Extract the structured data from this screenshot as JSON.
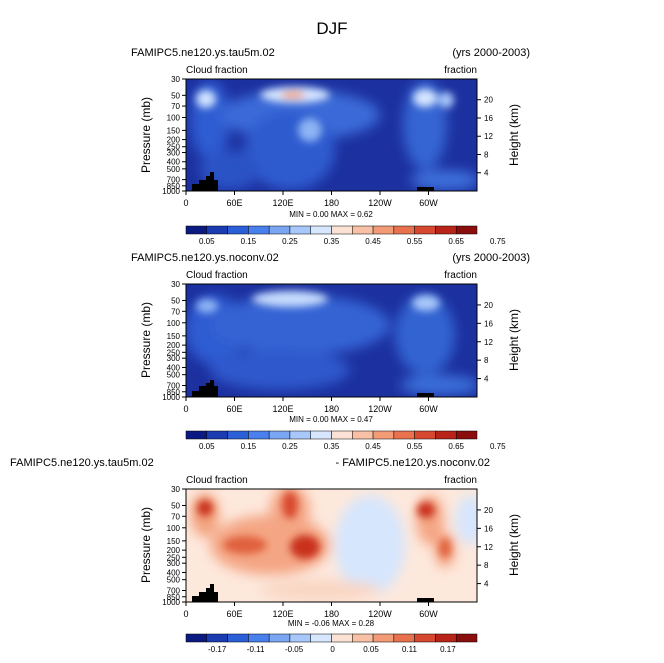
{
  "figure_title": "DJF",
  "colors": {
    "ocean_low": "#1b2fa0",
    "cloud_mid": "#5b8ee6",
    "cloud_high": "#cfe3ff",
    "peak": "#f0a27a",
    "terrain": "#000000"
  },
  "chart_data": [
    {
      "type": "heatmap",
      "left_title": "FAMIPC5.ne120.ys.tau5m.02",
      "right_title": "(yrs 2000-2003)",
      "left_subtitle": "Cloud fraction",
      "right_subtitle": "fraction",
      "ylabel": "Pressure (mb)",
      "ylabel_right": "Height (km)",
      "x_ticks": [
        "0",
        "60E",
        "120E",
        "180",
        "120W",
        "60W"
      ],
      "y_ticks": [
        "30",
        "50",
        "70",
        "100",
        "150",
        "200",
        "250",
        "300",
        "400",
        "500",
        "700",
        "850",
        "1000"
      ],
      "y_ticks_right": [
        "20",
        "16",
        "12",
        "8",
        "4"
      ],
      "stats": "MIN =  0.00   MAX =  0.62",
      "colorbar_labels": [
        "0.05",
        "0.15",
        "0.25",
        "0.35",
        "0.45",
        "0.55",
        "0.65",
        "0.75"
      ],
      "colorbar_colors": [
        "#0a1a80",
        "#1a3cb0",
        "#2a5fd8",
        "#4a80ee",
        "#7aa6f4",
        "#a9c8fa",
        "#d6e6fd",
        "#fbe2d4",
        "#f8c0a4",
        "#f39a76",
        "#e8714e",
        "#d6482f",
        "#b8241a",
        "#8a0e0c"
      ]
    },
    {
      "type": "heatmap",
      "left_title": "FAMIPC5.ne120.ys.noconv.02",
      "right_title": "(yrs 2000-2003)",
      "left_subtitle": "Cloud fraction",
      "right_subtitle": "fraction",
      "ylabel": "Pressure (mb)",
      "ylabel_right": "Height (km)",
      "x_ticks": [
        "0",
        "60E",
        "120E",
        "180",
        "120W",
        "60W"
      ],
      "y_ticks": [
        "30",
        "50",
        "70",
        "100",
        "150",
        "200",
        "250",
        "300",
        "400",
        "500",
        "700",
        "850",
        "1000"
      ],
      "y_ticks_right": [
        "20",
        "16",
        "12",
        "8",
        "4"
      ],
      "stats": "MIN =  0.00   MAX =  0.47",
      "colorbar_labels": [
        "0.05",
        "0.15",
        "0.25",
        "0.35",
        "0.45",
        "0.55",
        "0.65",
        "0.75"
      ],
      "colorbar_colors": [
        "#0a1a80",
        "#1a3cb0",
        "#2a5fd8",
        "#4a80ee",
        "#7aa6f4",
        "#a9c8fa",
        "#d6e6fd",
        "#fbe2d4",
        "#f8c0a4",
        "#f39a76",
        "#e8714e",
        "#d6482f",
        "#b8241a",
        "#8a0e0c"
      ]
    },
    {
      "type": "heatmap",
      "left_title": "FAMIPC5.ne120.ys.tau5m.02",
      "right_title": "- FAMIPC5.ne120.ys.noconv.02",
      "left_subtitle": "Cloud fraction",
      "right_subtitle": "fraction",
      "ylabel": "Pressure (mb)",
      "ylabel_right": "Height (km)",
      "x_ticks": [
        "0",
        "60E",
        "120E",
        "180",
        "120W",
        "60W"
      ],
      "y_ticks": [
        "30",
        "50",
        "70",
        "100",
        "150",
        "200",
        "250",
        "300",
        "400",
        "500",
        "700",
        "850",
        "1000"
      ],
      "y_ticks_right": [
        "20",
        "16",
        "12",
        "8",
        "4"
      ],
      "stats": "MIN = -0.06   MAX =  0.28",
      "colorbar_labels": [
        "-0.17",
        "-0.11",
        "-0.05",
        "0",
        "0.05",
        "0.11",
        "0.17"
      ],
      "colorbar_colors": [
        "#0a1a80",
        "#1a3cb0",
        "#2a5fd8",
        "#4a80ee",
        "#7aa6f4",
        "#a9c8fa",
        "#d6e6fd",
        "#fbe2d4",
        "#f8c0a4",
        "#f39a76",
        "#e8714e",
        "#d6482f",
        "#b8241a",
        "#8a0e0c"
      ]
    }
  ]
}
